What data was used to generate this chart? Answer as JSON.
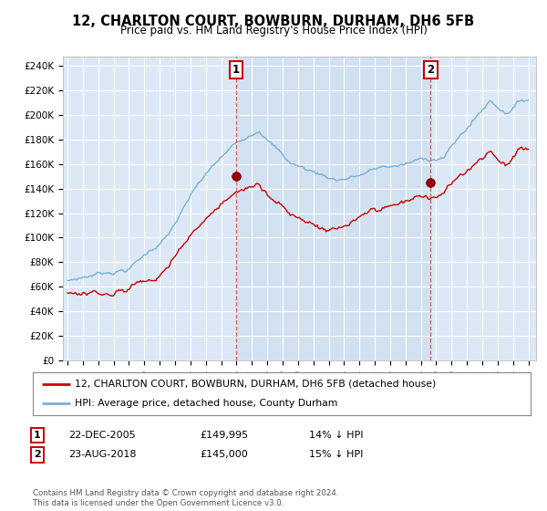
{
  "title": "12, CHARLTON COURT, BOWBURN, DURHAM, DH6 5FB",
  "subtitle": "Price paid vs. HM Land Registry's House Price Index (HPI)",
  "ylabel_ticks": [
    "£0",
    "£20K",
    "£40K",
    "£60K",
    "£80K",
    "£100K",
    "£120K",
    "£140K",
    "£160K",
    "£180K",
    "£200K",
    "£220K",
    "£240K"
  ],
  "ytick_values": [
    0,
    20000,
    40000,
    60000,
    80000,
    100000,
    120000,
    140000,
    160000,
    180000,
    200000,
    220000,
    240000
  ],
  "ylim": [
    0,
    248000
  ],
  "xlim_start": 1994.7,
  "xlim_end": 2025.5,
  "xtick_years": [
    1995,
    1996,
    1997,
    1998,
    1999,
    2000,
    2001,
    2002,
    2003,
    2004,
    2005,
    2006,
    2007,
    2008,
    2009,
    2010,
    2011,
    2012,
    2013,
    2014,
    2015,
    2016,
    2017,
    2018,
    2019,
    2020,
    2021,
    2022,
    2023,
    2024,
    2025
  ],
  "plot_bg": "#dce8f5",
  "sale1_x": 2005.97,
  "sale1_y": 149995,
  "sale1_label": "1",
  "sale1_date": "22-DEC-2005",
  "sale1_price": "£149,995",
  "sale1_hpi": "14% ↓ HPI",
  "sale2_x": 2018.64,
  "sale2_y": 145000,
  "sale2_label": "2",
  "sale2_date": "23-AUG-2018",
  "sale2_price": "£145,000",
  "sale2_hpi": "15% ↓ HPI",
  "legend_line1": "12, CHARLTON COURT, BOWBURN, DURHAM, DH6 5FB (detached house)",
  "legend_line2": "HPI: Average price, detached house, County Durham",
  "footer": "Contains HM Land Registry data © Crown copyright and database right 2024.\nThis data is licensed under the Open Government Licence v3.0.",
  "line_red_color": "#cc0000",
  "line_blue_color": "#7bafd4"
}
